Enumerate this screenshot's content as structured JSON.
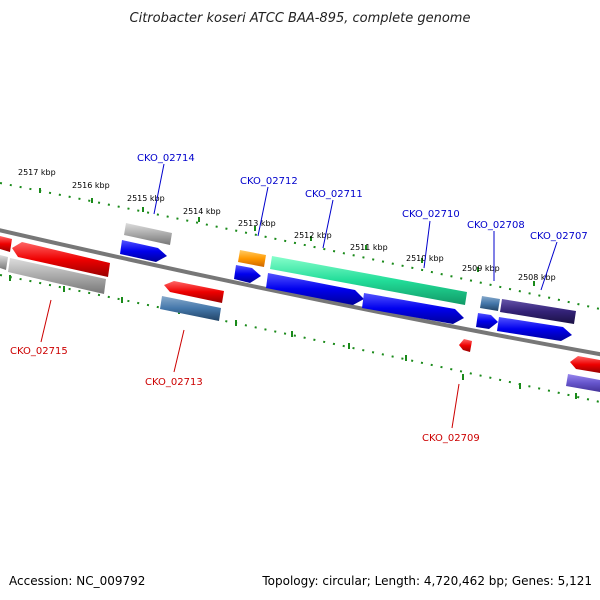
{
  "title": "Citrobacter koseri ATCC BAA-895, complete genome",
  "footer": {
    "accession": "Accession: NC_009792",
    "summary": "Topology: circular; Length: 4,720,462 bp; Genes: 5,121"
  },
  "axis_labels": [
    "2517 kbp",
    "2516 kbp",
    "2515 kbp",
    "2514 kbp",
    "2513 kbp",
    "2512 kbp",
    "2511 kbp",
    "2510 kbp",
    "2509 kbp",
    "2508 kbp"
  ],
  "gene_labels": {
    "forward": [
      "CKO_02714",
      "CKO_02712",
      "CKO_02711",
      "CKO_02710",
      "CKO_02708",
      "CKO_02707"
    ],
    "reverse": [
      "CKO_02715",
      "CKO_02713",
      "CKO_02709"
    ]
  },
  "colors": {
    "backbone": "#777777",
    "ticks": "#1a8a1a",
    "forward_cds": "#0000ee",
    "reverse_cds": "#ee0000",
    "rna": "#aaaaaa",
    "orange": "#ff9900",
    "teal": "#22dd99",
    "steel": "#4477aa",
    "navy": "#332277",
    "lavender": "#6655cc"
  }
}
